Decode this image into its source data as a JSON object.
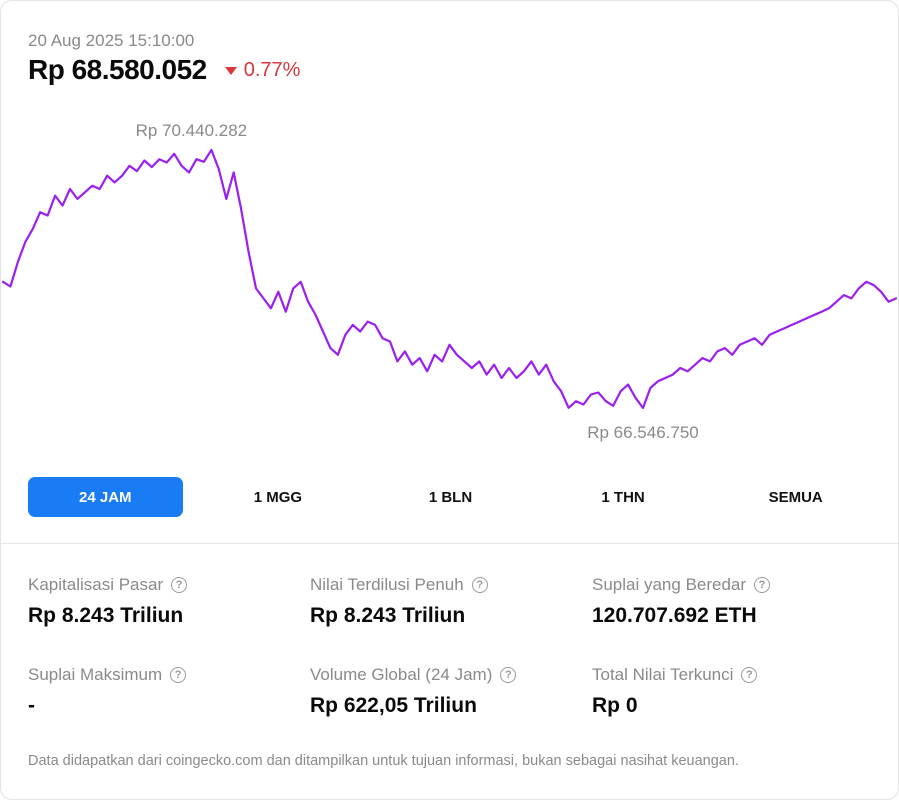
{
  "header": {
    "timestamp": "20 Aug 2025 15:10:00",
    "price": "Rp 68.580.052",
    "change": "0.77%",
    "change_direction": "down",
    "change_color": "#d9363e"
  },
  "chart_data": {
    "type": "line",
    "title": "",
    "xlabel": "",
    "ylabel": "",
    "line_color": "#9a1ff0",
    "high_label": "Rp 70.440.282",
    "low_label": "Rp 66.546.750",
    "ylim": [
      66200000,
      70800000
    ],
    "series": [
      {
        "values": [
          68450000,
          68380000,
          68750000,
          69050000,
          69250000,
          69500000,
          69450000,
          69750000,
          69600000,
          69850000,
          69700000,
          69800000,
          69900000,
          69850000,
          70050000,
          69950000,
          70050000,
          70200000,
          70120000,
          70280000,
          70180000,
          70300000,
          70250000,
          70380000,
          70200000,
          70100000,
          70300000,
          70260000,
          70440282,
          70150000,
          69700000,
          70100000,
          69550000,
          68900000,
          68350000,
          68200000,
          68050000,
          68300000,
          68000000,
          68350000,
          68450000,
          68150000,
          67950000,
          67700000,
          67450000,
          67350000,
          67650000,
          67800000,
          67700000,
          67850000,
          67800000,
          67600000,
          67550000,
          67250000,
          67400000,
          67200000,
          67300000,
          67100000,
          67350000,
          67250000,
          67500000,
          67350000,
          67250000,
          67150000,
          67250000,
          67050000,
          67200000,
          67000000,
          67150000,
          67000000,
          67100000,
          67250000,
          67050000,
          67200000,
          66950000,
          66800000,
          66550000,
          66650000,
          66600000,
          66750000,
          66780000,
          66650000,
          66580000,
          66800000,
          66900000,
          66700000,
          66546750,
          66850000,
          66950000,
          67000000,
          67050000,
          67150000,
          67100000,
          67200000,
          67300000,
          67250000,
          67400000,
          67450000,
          67350000,
          67500000,
          67550000,
          67600000,
          67500000,
          67650000,
          67700000,
          67750000,
          67800000,
          67850000,
          67900000,
          67950000,
          68000000,
          68050000,
          68150000,
          68250000,
          68200000,
          68350000,
          68450000,
          68400000,
          68300000,
          68150000,
          68200000
        ]
      }
    ]
  },
  "range_tabs": [
    {
      "label": "24 JAM",
      "active": true
    },
    {
      "label": "1 MGG",
      "active": false
    },
    {
      "label": "1 BLN",
      "active": false
    },
    {
      "label": "1 THN",
      "active": false
    },
    {
      "label": "SEMUA",
      "active": false
    }
  ],
  "stats": [
    {
      "label": "Kapitalisasi Pasar",
      "value": "Rp 8.243 Triliun"
    },
    {
      "label": "Nilai Terdilusi Penuh",
      "value": "Rp 8.243 Triliun"
    },
    {
      "label": "Suplai yang Beredar",
      "value": "120.707.692 ETH"
    },
    {
      "label": "Suplai Maksimum",
      "value": "-"
    },
    {
      "label": "Volume Global (24 Jam)",
      "value": "Rp 622,05 Triliun"
    },
    {
      "label": "Total Nilai Terkunci",
      "value": "Rp 0"
    }
  ],
  "help_icon_glyph": "?",
  "footer": {
    "note": "Data didapatkan dari coingecko.com dan ditampilkan untuk tujuan informasi, bukan sebagai nasihat keuangan."
  }
}
